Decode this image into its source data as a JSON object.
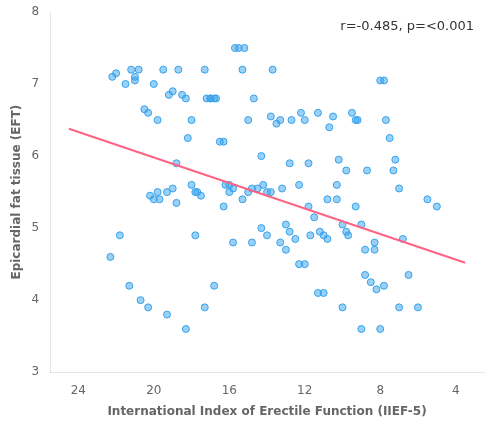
{
  "chart_data": {
    "type": "scatter",
    "xlabel": "International Index of Erectile Function (IIEF-5)",
    "ylabel": "Epicardial fat tissue (EFT)",
    "annotation": "r=-0.485, p=<0.001",
    "xlim": [
      25.5,
      2.5
    ],
    "ylim": [
      3,
      8
    ],
    "xticks": [
      24,
      20,
      16,
      12,
      8,
      4
    ],
    "yticks": [
      3,
      4,
      5,
      6,
      7,
      8
    ],
    "grid": false,
    "series": [
      {
        "type": "scatter",
        "x": [
          22.0,
          21.2,
          21.0,
          20.5,
          20.2,
          20.0,
          19.8,
          19.5,
          19.2,
          19.0,
          18.8,
          18.5,
          18.2,
          18.0,
          17.8,
          17.5,
          17.2,
          17.0,
          16.8,
          16.5,
          16.2,
          16.0,
          15.8,
          15.5,
          15.2,
          15.0,
          14.8,
          14.5,
          14.2,
          14.0,
          13.8,
          13.5,
          13.2,
          13.0,
          12.8,
          12.5,
          12.2,
          12.0,
          11.8,
          11.5,
          11.2,
          11.0,
          10.8,
          10.5,
          10.2,
          10.0,
          9.8,
          9.5,
          9.2,
          9.0,
          8.8,
          8.5,
          8.2,
          8.0,
          7.8,
          7.5,
          7.2,
          7.0,
          6.8,
          6.5,
          22.2,
          21.5,
          20.8,
          20.3,
          19.7,
          19.3,
          18.7,
          18.3,
          17.7,
          17.3,
          16.7,
          16.3,
          15.7,
          15.3,
          14.7,
          14.3,
          13.7,
          13.3,
          12.7,
          12.3,
          11.7,
          11.3,
          10.7,
          10.3,
          9.7,
          9.3,
          8.7,
          8.3,
          7.7,
          7.3,
          21.8,
          20.7,
          19.8,
          18.8,
          17.8,
          16.8,
          15.8,
          14.8,
          13.8,
          12.8,
          11.8,
          10.8,
          9.8,
          8.8,
          7.8,
          22.3,
          21.3,
          20.3,
          19.3,
          18.3,
          17.3,
          16.3,
          15.3,
          14.3,
          13.3,
          12.3,
          11.3,
          10.3,
          9.3,
          8.3,
          21.0,
          20.0,
          19.0,
          18.0,
          17.0,
          16.0,
          15.0,
          14.0,
          13.0,
          12.0,
          11.0,
          10.0,
          9.0,
          8.0,
          7.0,
          6.0,
          5.0,
          5.5
        ],
        "values": [
          7.15,
          7.2,
          7.1,
          6.65,
          5.45,
          5.4,
          5.5,
          7.2,
          6.85,
          5.55,
          5.35,
          6.85,
          6.25,
          5.6,
          5.5,
          5.45,
          6.8,
          6.8,
          6.8,
          6.2,
          5.6,
          5.6,
          5.55,
          7.5,
          7.5,
          6.5,
          5.55,
          5.55,
          5.6,
          4.9,
          6.55,
          6.45,
          5.55,
          5.05,
          4.95,
          4.85,
          6.6,
          6.5,
          5.9,
          5.15,
          4.95,
          4.9,
          4.85,
          6.55,
          5.95,
          5.05,
          4.95,
          6.6,
          6.5,
          5.05,
          4.35,
          4.25,
          4.15,
          7.05,
          7.05,
          6.25,
          5.95,
          5.55,
          4.85,
          4.35,
          7.1,
          7.0,
          7.2,
          6.6,
          5.4,
          5.5,
          7.2,
          6.8,
          5.5,
          7.2,
          6.8,
          6.2,
          7.5,
          7.2,
          6.8,
          6.0,
          7.2,
          6.5,
          6.5,
          5.6,
          4.9,
          6.6,
          6.4,
          5.6,
          4.9,
          6.5,
          5.8,
          4.7,
          6.5,
          5.8,
          4.9,
          4.0,
          6.5,
          5.9,
          4.9,
          4.2,
          4.8,
          4.8,
          5.5,
          5.9,
          5.3,
          5.4,
          5.8,
          4.7,
          4.2,
          4.6,
          4.2,
          3.9,
          3.8,
          3.6,
          3.9,
          5.3,
          5.4,
          5.0,
          4.8,
          4.5,
          4.1,
          5.4,
          5.3,
          4.8,
          7.05,
          7.0,
          6.9,
          6.5,
          6.8,
          5.5,
          5.5,
          5.5,
          4.7,
          4.5,
          4.1,
          3.9,
          3.6,
          3.6,
          3.9,
          3.9,
          5.3,
          5.4
        ]
      },
      {
        "type": "line",
        "x": [
          24.5,
          3.5
        ],
        "values": [
          6.38,
          4.52
        ]
      }
    ]
  }
}
